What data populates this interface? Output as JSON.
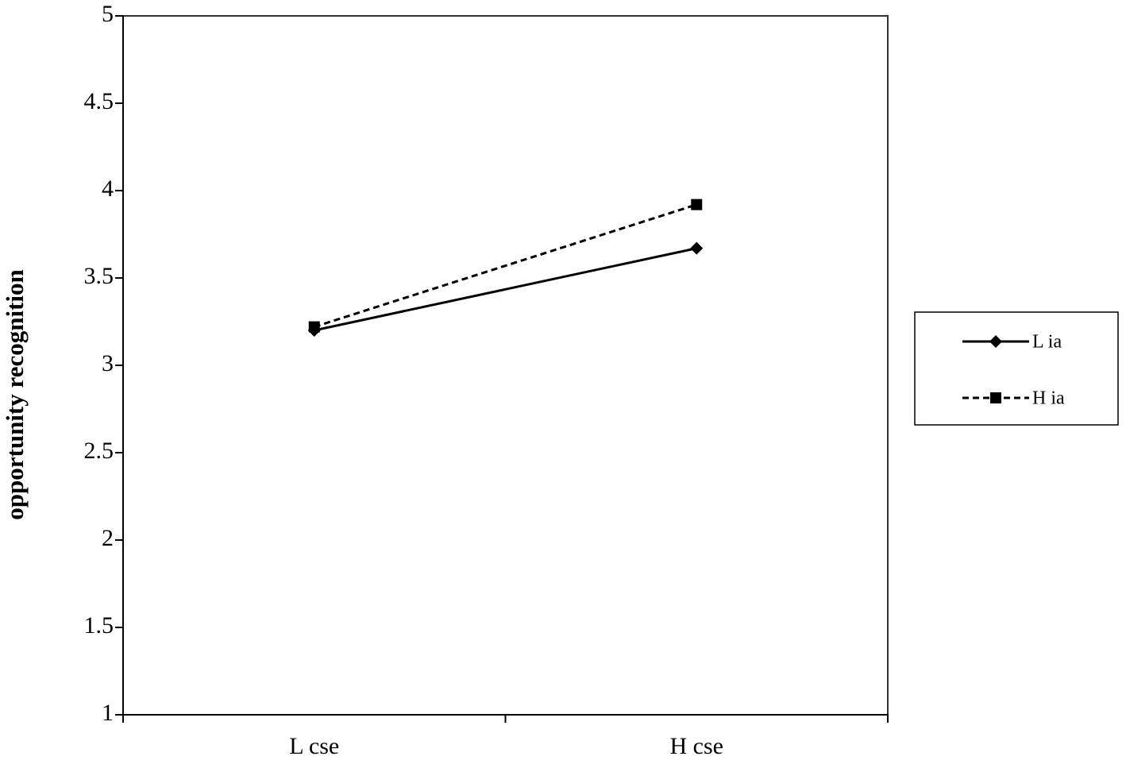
{
  "chart_data": {
    "type": "line",
    "ylabel": "opportunity recognition",
    "categories": [
      "L cse",
      "H cse"
    ],
    "series": [
      {
        "name": "L ia",
        "color": "#000000",
        "line_style": "solid",
        "marker": "diamond",
        "values": [
          3.2,
          3.67
        ]
      },
      {
        "name": "H ia",
        "color": "#000000",
        "line_style": "dashed",
        "marker": "square",
        "values": [
          3.22,
          3.92
        ]
      }
    ],
    "ylim": [
      1,
      5
    ],
    "yticks": [
      1,
      1.5,
      2,
      2.5,
      3,
      3.5,
      4,
      4.5,
      5
    ],
    "grid": false,
    "legend": "right"
  }
}
